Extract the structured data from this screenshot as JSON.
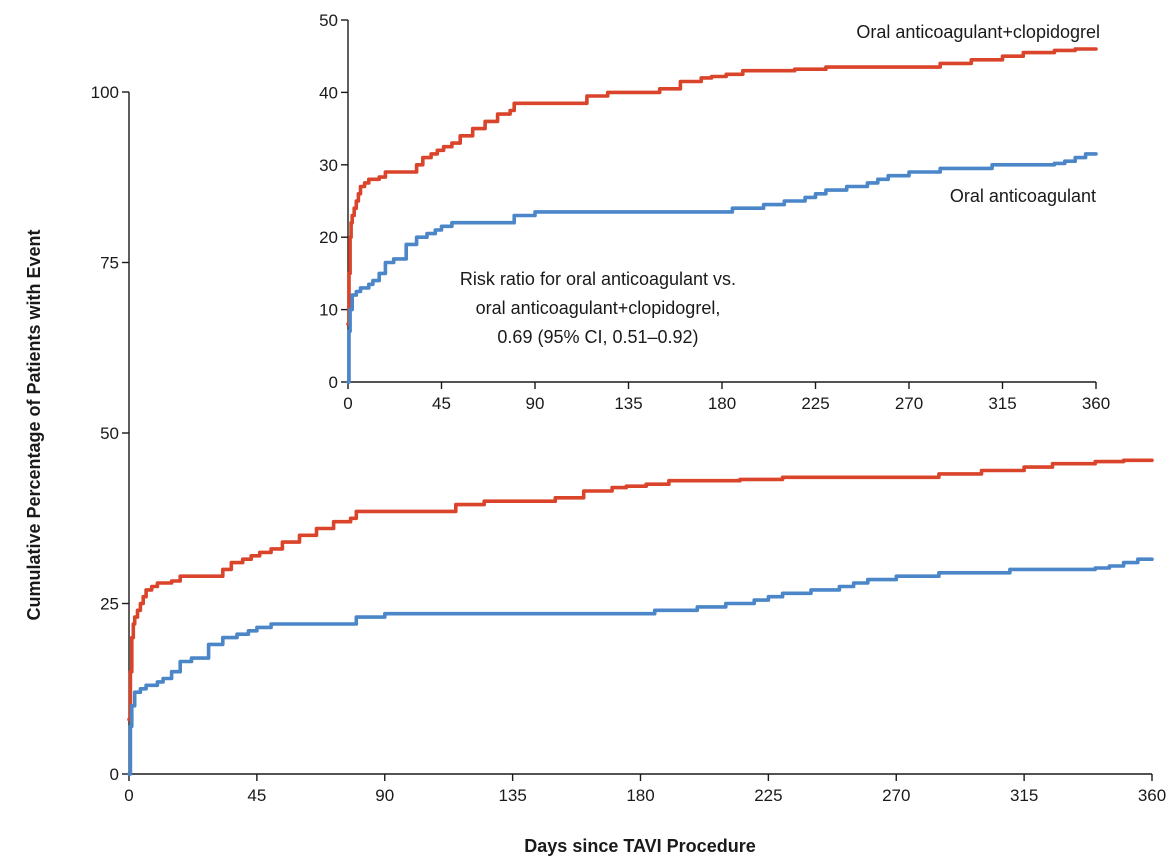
{
  "chart_data": [
    {
      "type": "line",
      "step": true,
      "xlabel": "Days since TAVI Procedure",
      "ylabel": "Cumulative Percentage of Patients with Event",
      "xlim": [
        0,
        360
      ],
      "ylim": [
        0,
        100
      ],
      "x_ticks": [
        0,
        45,
        90,
        135,
        180,
        225,
        270,
        315,
        360
      ],
      "y_ticks": [
        0,
        25,
        50,
        75,
        100
      ],
      "grid": false,
      "series": [
        {
          "color": "#d9442a",
          "x": [
            0,
            0.5,
            1,
            1.5,
            2,
            3,
            4,
            5,
            6,
            8,
            10,
            12,
            15,
            18,
            22,
            26,
            33,
            36,
            40,
            43,
            46,
            50,
            54,
            60,
            66,
            72,
            78,
            80,
            90,
            100,
            115,
            125,
            140,
            150,
            160,
            170,
            175,
            182,
            190,
            200,
            215,
            230,
            250,
            265,
            275,
            285,
            300,
            315,
            325,
            340,
            350,
            360
          ],
          "y": [
            8,
            15,
            20,
            22,
            23,
            24,
            25,
            26,
            27,
            27.5,
            28,
            28,
            28.3,
            29,
            29,
            29,
            30,
            31,
            31.5,
            32,
            32.5,
            33,
            34,
            35,
            36,
            37,
            37.5,
            38.5,
            38.5,
            38.5,
            39.5,
            40,
            40,
            40.5,
            41.5,
            42,
            42.2,
            42.5,
            43,
            43,
            43.2,
            43.5,
            43.5,
            43.5,
            43.5,
            44,
            44.5,
            45,
            45.5,
            45.8,
            46,
            46
          ]
        },
        {
          "color": "#4a86c8",
          "x": [
            0,
            0.5,
            1,
            2,
            4,
            6,
            8,
            10,
            12,
            15,
            18,
            22,
            28,
            33,
            38,
            42,
            45,
            50,
            70,
            80,
            90,
            110,
            130,
            160,
            180,
            185,
            190,
            200,
            210,
            215,
            220,
            225,
            230,
            240,
            245,
            250,
            255,
            260,
            270,
            285,
            300,
            310,
            320,
            340,
            345,
            350,
            355,
            360
          ],
          "y": [
            0,
            7,
            10,
            12,
            12.5,
            13,
            13,
            13.5,
            14,
            15,
            16.5,
            17,
            19,
            20,
            20.5,
            21,
            21.5,
            22,
            22,
            23,
            23.5,
            23.5,
            23.5,
            23.5,
            23.5,
            24,
            24,
            24.5,
            25,
            25,
            25.5,
            26,
            26.5,
            27,
            27,
            27.5,
            28,
            28.5,
            29,
            29.5,
            29.5,
            30,
            30,
            30.2,
            30.5,
            31,
            31.5,
            31.5
          ]
        }
      ]
    },
    {
      "type": "line",
      "step": true,
      "inset": true,
      "xlim": [
        0,
        360
      ],
      "ylim": [
        0,
        50
      ],
      "x_ticks": [
        0,
        45,
        90,
        135,
        180,
        225,
        270,
        315,
        360
      ],
      "y_ticks": [
        0,
        10,
        20,
        30,
        40,
        50
      ],
      "grid": false,
      "series": [
        {
          "name": "Oral anticoagulant+clopidogrel",
          "color": "#d9442a",
          "x": [
            0,
            0.5,
            1,
            1.5,
            2,
            3,
            4,
            5,
            6,
            8,
            10,
            12,
            15,
            18,
            22,
            26,
            33,
            36,
            40,
            43,
            46,
            50,
            54,
            60,
            66,
            72,
            78,
            80,
            90,
            100,
            115,
            125,
            140,
            150,
            160,
            170,
            175,
            182,
            190,
            200,
            215,
            230,
            250,
            265,
            275,
            285,
            300,
            315,
            325,
            340,
            350,
            360
          ],
          "y": [
            8,
            15,
            20,
            22,
            23,
            24,
            25,
            26,
            27,
            27.5,
            28,
            28,
            28.3,
            29,
            29,
            29,
            30,
            31,
            31.5,
            32,
            32.5,
            33,
            34,
            35,
            36,
            37,
            37.5,
            38.5,
            38.5,
            38.5,
            39.5,
            40,
            40,
            40.5,
            41.5,
            42,
            42.2,
            42.5,
            43,
            43,
            43.2,
            43.5,
            43.5,
            43.5,
            43.5,
            44,
            44.5,
            45,
            45.5,
            45.8,
            46,
            46
          ]
        },
        {
          "name": "Oral anticoagulant",
          "color": "#4a86c8",
          "x": [
            0,
            0.5,
            1,
            2,
            4,
            6,
            8,
            10,
            12,
            15,
            18,
            22,
            28,
            33,
            38,
            42,
            45,
            50,
            70,
            80,
            90,
            110,
            130,
            160,
            180,
            185,
            190,
            200,
            210,
            215,
            220,
            225,
            230,
            240,
            245,
            250,
            255,
            260,
            270,
            285,
            300,
            310,
            320,
            340,
            345,
            350,
            355,
            360
          ],
          "y": [
            0,
            7,
            10,
            12,
            12.5,
            13,
            13,
            13.5,
            14,
            15,
            16.5,
            17,
            19,
            20,
            20.5,
            21,
            21.5,
            22,
            22,
            23,
            23.5,
            23.5,
            23.5,
            23.5,
            23.5,
            24,
            24,
            24.5,
            25,
            25,
            25.5,
            26,
            26.5,
            27,
            27,
            27.5,
            28,
            28.5,
            29,
            29.5,
            29.5,
            30,
            30,
            30.2,
            30.5,
            31,
            31.5,
            31.5
          ]
        }
      ],
      "annotation": [
        "Risk ratio for oral anticoagulant vs.",
        "oral anticoagulant+clopidogrel,",
        "0.69 (95% CI, 0.51–0.92)"
      ]
    }
  ]
}
